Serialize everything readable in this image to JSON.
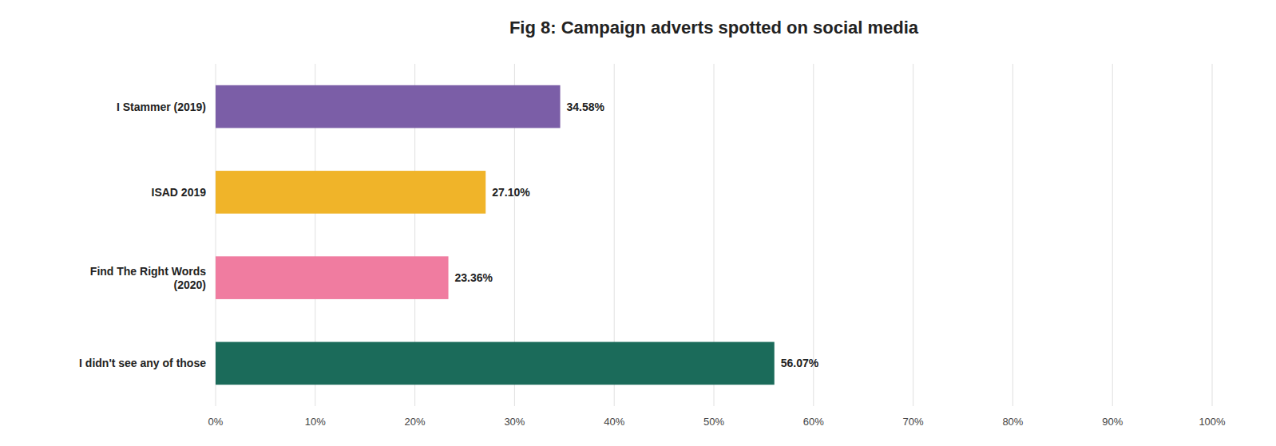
{
  "chart_data": {
    "type": "bar",
    "orientation": "horizontal",
    "title": "Fig 8: Campaign adverts spotted on social media",
    "categories": [
      "I Stammer (2019)",
      "ISAD 2019",
      "Find The Right Words\n(2020)",
      "I didn't see any of those"
    ],
    "values": [
      34.58,
      27.1,
      23.36,
      56.07
    ],
    "value_labels": [
      "34.58%",
      "27.10%",
      "23.36%",
      "56.07%"
    ],
    "colors": [
      "#7B5EA7",
      "#F0B429",
      "#F07CA0",
      "#1B6B5A"
    ],
    "xlim": [
      0,
      100
    ],
    "xticks": [
      {
        "value": 0,
        "label": "0%"
      },
      {
        "value": 10,
        "label": "10%"
      },
      {
        "value": 20,
        "label": "20%"
      },
      {
        "value": 30,
        "label": "30%"
      },
      {
        "value": 40,
        "label": "40%"
      },
      {
        "value": 50,
        "label": "50%"
      },
      {
        "value": 60,
        "label": "60%"
      },
      {
        "value": 70,
        "label": "70%"
      },
      {
        "value": 80,
        "label": "80%"
      },
      {
        "value": 90,
        "label": "90%"
      },
      {
        "value": 100,
        "label": "100%"
      }
    ],
    "grid": true,
    "data_labels": true
  }
}
